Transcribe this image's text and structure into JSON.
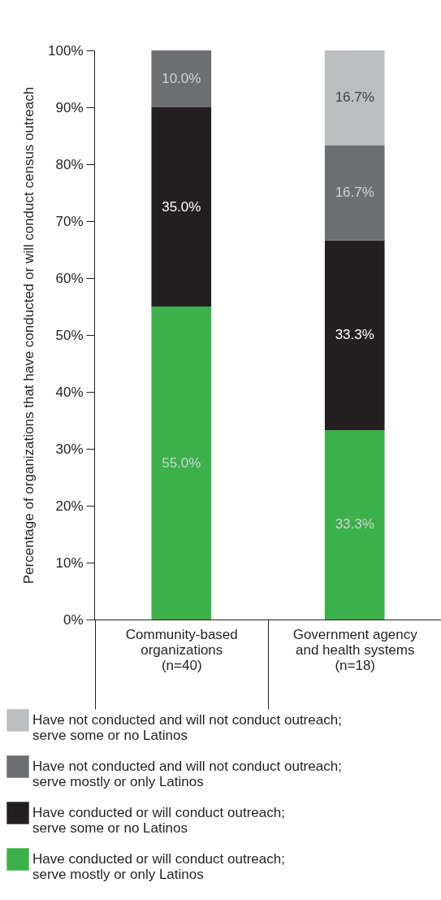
{
  "chart_data": {
    "type": "bar",
    "stacked": true,
    "ylabel": "Percentage of organizations that have conducted or will conduct census outreach",
    "categories": [
      "Community-based\norganizations\n(n=40)",
      "Government agency\nand health systems\n(n=18)"
    ],
    "ylim": [
      0,
      100
    ],
    "yticks": [
      {
        "value": 0,
        "label": "0%"
      },
      {
        "value": 10,
        "label": "10%"
      },
      {
        "value": 20,
        "label": "20%"
      },
      {
        "value": 30,
        "label": "30%"
      },
      {
        "value": 40,
        "label": "40%"
      },
      {
        "value": 50,
        "label": "50%"
      },
      {
        "value": 60,
        "label": "60%"
      },
      {
        "value": 70,
        "label": "70%"
      },
      {
        "value": 80,
        "label": "80%"
      },
      {
        "value": 90,
        "label": "90%"
      },
      {
        "value": 100,
        "label": "100%"
      }
    ],
    "grid": false,
    "legend": "bottom",
    "series": [
      {
        "name": "Have conducted or will conduct outreach; serve mostly or only Latinos",
        "color": "#3cb04a",
        "values": [
          55.0,
          33.3
        ],
        "value_labels": [
          "55.0%",
          "33.3%"
        ]
      },
      {
        "name": "Have conducted or will conduct outreach; serve some or no Latinos",
        "color": "#231f20",
        "values": [
          35.0,
          33.3
        ],
        "value_labels": [
          "35.0%",
          "33.3%"
        ]
      },
      {
        "name": "Have not conducted and will not conduct outreach; serve mostly or only Latinos",
        "color": "#6d6e71",
        "values": [
          10.0,
          16.7
        ],
        "value_labels": [
          "10.0%",
          "16.7%"
        ]
      },
      {
        "name": "Have not conducted and will not conduct outreach; serve some or no Latinos",
        "color": "#bcbec0",
        "values": [
          null,
          16.7
        ],
        "value_labels": [
          null,
          "16.7%"
        ]
      }
    ]
  }
}
